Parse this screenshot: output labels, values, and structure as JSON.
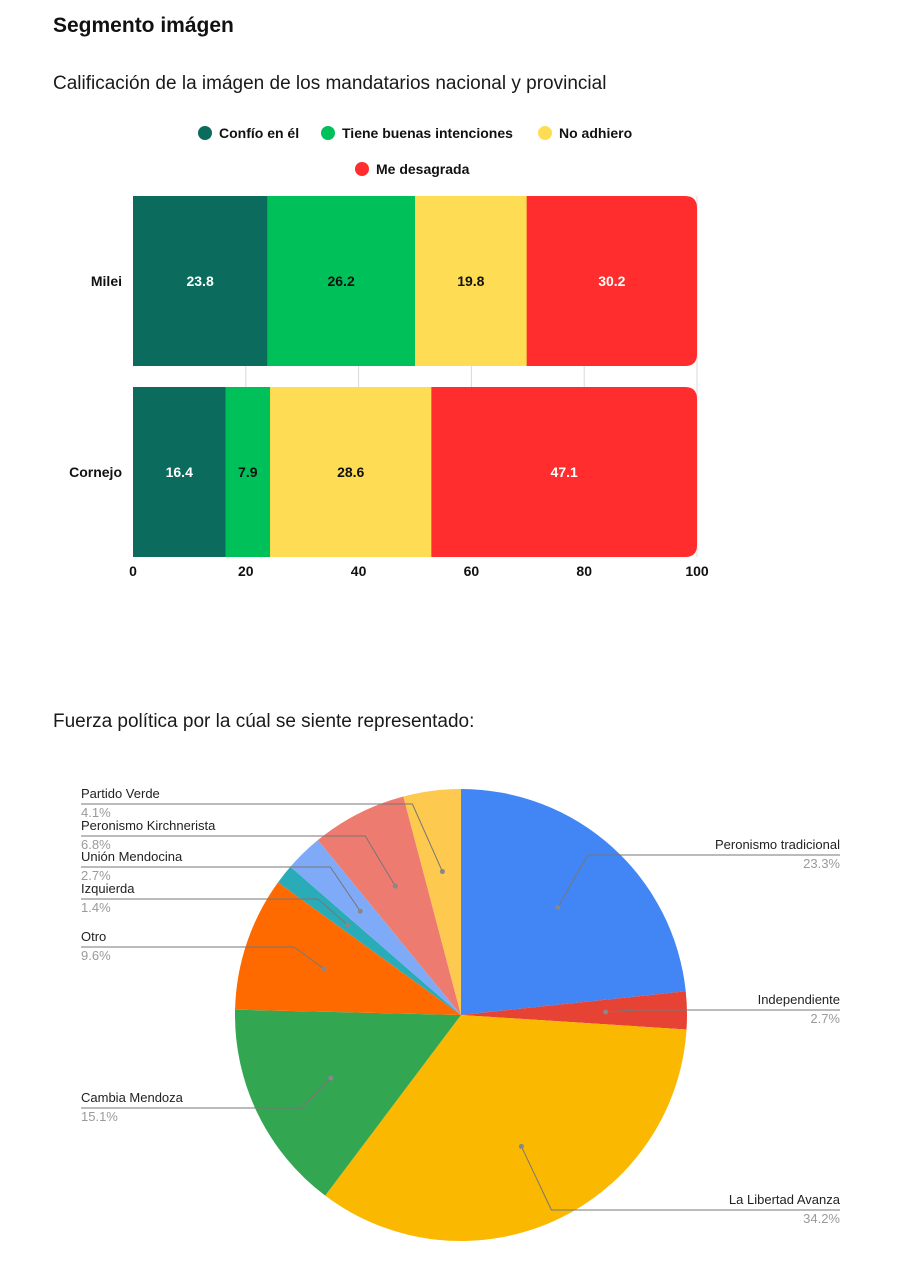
{
  "page": {
    "section_title": "Segmento imágen"
  },
  "chart_data": [
    {
      "type": "bar",
      "orientation": "horizontal",
      "stacked": true,
      "title": "Calificación de la imágen de los mandatarios nacional y provincial",
      "categories": [
        "Milei",
        "Cornejo"
      ],
      "series": [
        {
          "name": "Confío en él",
          "values": [
            23.8,
            16.4
          ],
          "color": "#0b6b5c",
          "label_color": "#ffffff"
        },
        {
          "name": "Tiene buenas intenciones",
          "values": [
            26.2,
            7.9
          ],
          "color": "#00c05a",
          "label_color": "#111111"
        },
        {
          "name": "No adhiero",
          "values": [
            19.8,
            28.6
          ],
          "color": "#fedd54",
          "label_color": "#111111"
        },
        {
          "name": "Me desagrada",
          "values": [
            30.2,
            47.1
          ],
          "color": "#ff2d2d",
          "label_color": "#ffffff"
        }
      ],
      "xlim": [
        0,
        100
      ],
      "xticks": [
        0,
        20,
        40,
        60,
        80,
        100
      ],
      "grid": true,
      "legend": "top"
    },
    {
      "type": "pie",
      "title": "Fuerza política por la cúal se siente representado:",
      "start": "top",
      "direction": "clockwise",
      "slices": [
        {
          "label": "Peronismo tradicional",
          "value": 23.3,
          "display": "23.3%",
          "color": "#4285f4",
          "side": "right"
        },
        {
          "label": "Independiente",
          "value": 2.7,
          "display": "2.7%",
          "color": "#e64335",
          "side": "right"
        },
        {
          "label": "La Libertad Avanza",
          "value": 34.2,
          "display": "34.2%",
          "color": "#fbb800",
          "side": "right"
        },
        {
          "label": "Cambia Mendoza",
          "value": 15.1,
          "display": "15.1%",
          "color": "#33a652",
          "side": "left"
        },
        {
          "label": "Otro",
          "value": 9.6,
          "display": "9.6%",
          "color": "#ff6a00",
          "side": "left"
        },
        {
          "label": "Izquierda",
          "value": 1.4,
          "display": "1.4%",
          "color": "#2aabb8",
          "side": "left"
        },
        {
          "label": "Unión Mendocina",
          "value": 2.7,
          "display": "2.7%",
          "color": "#7faaf7",
          "side": "left"
        },
        {
          "label": "Peronismo Kirchnerista",
          "value": 6.8,
          "display": "6.8%",
          "color": "#ee7b6f",
          "side": "left"
        },
        {
          "label": "Partido Verde",
          "value": 4.1,
          "display": "4.1%",
          "color": "#fdc94e",
          "side": "left"
        }
      ]
    }
  ]
}
